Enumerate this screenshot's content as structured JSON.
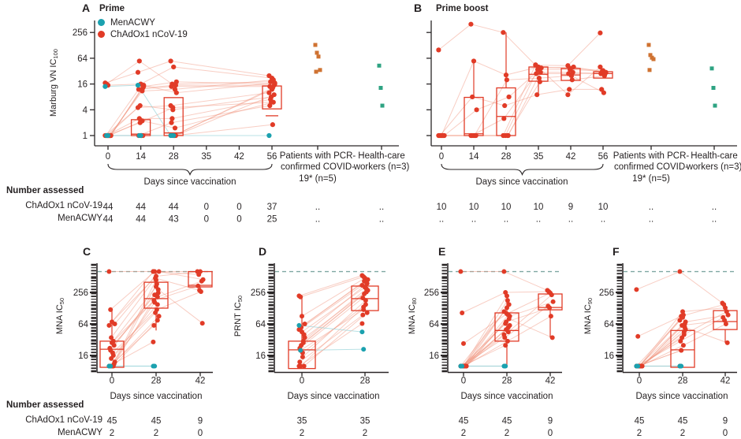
{
  "palette": {
    "red": "#e13b27",
    "teal": "#1ba1af",
    "orange": "#cf7231",
    "green": "#2ea382",
    "line_red": "#f0927b",
    "line_teal": "#93d2d8",
    "axis": "#2a2627",
    "text": "#231f20",
    "dashed": "#7fa8a3"
  },
  "legend": {
    "items": [
      {
        "label": "MenACWY",
        "color": "#1ba1af"
      },
      {
        "label": "ChAdOx1 nCoV-19",
        "color": "#e13b27"
      }
    ]
  },
  "shared": {
    "xlabel": "Days since vaccination",
    "number_assessed": "Number assessed",
    "row1": "ChAdOx1 nCoV-19",
    "row2": "MenACWY",
    "patients_header": "Patients with PCR-confirmed COVID-19* (n=5)",
    "hcw_header": "Health-care workers (n=3)"
  },
  "chart_data": [
    {
      "id": "A",
      "title": "Prime",
      "type": "box-scatter-line",
      "scale": "log",
      "ylabel": {
        "base": "Marburg VN IC",
        "sub": "100"
      },
      "yticks": [
        1,
        4,
        16,
        64,
        256
      ],
      "xticks": [
        0,
        14,
        28,
        35,
        42,
        56
      ],
      "series": {
        "ChAdOx1 nCoV-19": {
          "color": "red",
          "days": [
            [
              17,
              16,
              15,
              1,
              1,
              1,
              1,
              1,
              1,
              1,
              1,
              1,
              1,
              1,
              1,
              1,
              1,
              1
            ],
            [
              30,
              55,
              16,
              2.2,
              14,
              12,
              5,
              1,
              13,
              4.5,
              2.5,
              1,
              11,
              15,
              1,
              2,
              1,
              1
            ],
            [
              55,
              16,
              40,
              1.5,
              18,
              14,
              4,
              1,
              15,
              5,
              2.5,
              1,
              12,
              10,
              2,
              4.5,
              1,
              1
            ],
            [],
            [],
            [
              25,
              18,
              22,
              6,
              16,
              14,
              8,
              1.8,
              15,
              10,
              7,
              12,
              20,
              17,
              5,
              6,
              13,
              9
            ]
          ]
        },
        "MenACWY": {
          "color": "teal",
          "days": [
            [
              14,
              1,
              1
            ],
            [
              15,
              1,
              1
            ],
            [
              1,
              1,
              1
            ],
            [],
            [],
            [
              1
            ]
          ]
        }
      },
      "boxes": [
        {
          "d": 1,
          "q1": 1,
          "med": 1.08,
          "q3": 2.35
        },
        {
          "d": 2,
          "q1": 1,
          "med": 1.15,
          "q3": 7.7
        },
        {
          "d": 5,
          "q1": 4.2,
          "q3": 14.4,
          "cap": 2.9
        }
      ],
      "extra_columns": [
        {
          "key": "patients",
          "values": [
            131,
            86,
            70,
            34,
            31
          ]
        },
        {
          "key": "hcw",
          "values": [
            43,
            13,
            5
          ]
        }
      ],
      "assessed": [
        [
          "44",
          "44",
          "44",
          "0",
          "0",
          "37",
          "..",
          ".."
        ],
        [
          "44",
          "44",
          "43",
          "0",
          "0",
          "25",
          "..",
          ".."
        ]
      ]
    },
    {
      "id": "B",
      "title": "Prime boost",
      "type": "box-scatter-line",
      "scale": "log",
      "ylabel": {
        "base": "Marburg VN IC",
        "sub": "100"
      },
      "yticks": [
        1,
        4,
        16,
        64,
        256
      ],
      "xticks": [
        0,
        14,
        28,
        35,
        42,
        56
      ],
      "series": {
        "ChAdOx1 nCoV-19": {
          "color": "red",
          "days": [
            [
              100,
              1,
              1,
              1,
              1,
              1,
              1,
              1,
              1,
              1
            ],
            [
              400,
              8,
              55,
              1,
              4,
              1,
              1,
              1,
              1,
              1
            ],
            [
              256,
              5,
              26,
              1,
              8,
              2.5,
              1,
              20,
              1,
              1
            ],
            [
              44,
              9,
              40,
              18,
              38,
              28,
              35,
              22,
              30,
              45
            ],
            [
              43,
              12,
              37,
              20,
              40,
              28,
              35,
              25,
              30,
              9
            ],
            [
              250,
              12,
              33,
              25,
              30,
              28,
              32,
              10,
              28,
              40
            ]
          ]
        },
        "MenACWY": {
          "color": "teal",
          "days": [
            [],
            [],
            [],
            [],
            [],
            []
          ]
        }
      },
      "boxes": [
        {
          "d": 1,
          "q1": 1,
          "med": 1.1,
          "q3": 7.8,
          "hi": 54
        },
        {
          "d": 2,
          "q1": 1,
          "med": 2.8,
          "q3": 13,
          "hi": 256
        },
        {
          "d": 3,
          "q1": 18.6,
          "med": 27,
          "q3": 40,
          "hi": 44,
          "lo": 9
        },
        {
          "d": 4,
          "q1": 19.4,
          "med": 26,
          "q3": 37
        },
        {
          "d": 5,
          "q1": 22,
          "med": 28,
          "q3": 31
        }
      ],
      "extra_columns": [
        {
          "key": "patients",
          "values": [
            131,
            76,
            66,
            61,
            34
          ]
        },
        {
          "key": "hcw",
          "values": [
            37,
            13,
            5
          ]
        }
      ],
      "assessed": [
        [
          "10",
          "10",
          "10",
          "10",
          "9",
          "10",
          "..",
          ".."
        ],
        [
          "..",
          "..",
          "..",
          "..",
          "..",
          "..",
          "..",
          ".."
        ]
      ]
    },
    {
      "id": "C",
      "title": "",
      "type": "box-scatter-line",
      "scale": "log",
      "upper_limit": 640,
      "ylabel": {
        "base": "MNA IC",
        "sub": "50"
      },
      "yticks": [
        16,
        64,
        256
      ],
      "xticks": [
        0,
        28,
        42
      ],
      "series": {
        "ChAdOx1 nCoV-19": {
          "color": "red",
          "days": [
            [
              640,
              120,
              70,
              30,
              64,
              22,
              35,
              18,
              25,
              60,
              20,
              28,
              16,
              12,
              10,
              14,
              10,
              11,
              10,
              10,
              10,
              10
            ],
            [
              640,
              640,
              520,
              210,
              640,
              180,
              480,
              120,
              290,
              640,
              230,
              330,
              150,
              90,
              60,
              105,
              370,
              250,
              29,
              165,
              440,
              75
            ],
            [
              640,
              560,
              640,
              420,
              450,
              340,
              280,
              265,
              66
            ]
          ]
        },
        "MenACWY": {
          "color": "teal",
          "days": [
            [
              10,
              10
            ],
            [
              10,
              10
            ],
            []
          ]
        }
      },
      "boxes": [
        {
          "d": 0,
          "q1": 9.5,
          "med": 21,
          "q3": 30,
          "hi": 120
        },
        {
          "d": 1,
          "q1": 128,
          "med": 195,
          "q3": 400,
          "hi": 640,
          "lo": 48
        },
        {
          "d": 2,
          "q1": 326,
          "med": 350,
          "q3": 640,
          "lo": 265
        }
      ],
      "assessed": [
        [
          "45",
          "45",
          "9"
        ],
        [
          "2",
          "2",
          "0"
        ]
      ]
    },
    {
      "id": "D",
      "title": "",
      "type": "box-scatter-line",
      "scale": "log",
      "upper_limit": 640,
      "ylabel": {
        "base": "PRNT IC",
        "sub": "50"
      },
      "yticks": [
        16,
        64,
        256
      ],
      "xticks": [
        0,
        28
      ],
      "series": {
        "ChAdOx1 nCoV-19": {
          "color": "red",
          "days": [
            [
              220,
              210,
              90,
              30,
              64,
              22,
              55,
              18,
              40,
              50,
              20,
              45,
              28,
              35,
              12,
              25,
              15,
              10,
              10,
              10
            ],
            [
              540,
              510,
              480,
              300,
              450,
              200,
              420,
              150,
              380,
              350,
              120,
              320,
              260,
              280,
              95,
              240,
              180,
              105,
              65,
              135
            ]
          ]
        },
        "MenACWY": {
          "color": "teal",
          "days": [
            [
              60,
              20
            ],
            [
              45,
              21
            ]
          ]
        }
      },
      "boxes": [
        {
          "d": 0,
          "q1": 9,
          "med": 20.5,
          "q3": 30,
          "hi": 220
        },
        {
          "d": 1,
          "q1": 115,
          "med": 195,
          "q3": 338,
          "hi": 540
        }
      ],
      "assessed": [
        [
          "35",
          "35"
        ],
        [
          "2",
          "2"
        ]
      ]
    },
    {
      "id": "E",
      "title": "",
      "type": "box-scatter-line",
      "scale": "log",
      "upper_limit": 640,
      "ylabel": {
        "base": "MNA IC",
        "sub": "80"
      },
      "yticks": [
        16,
        64,
        256
      ],
      "xticks": [
        0,
        28,
        42
      ],
      "series": {
        "ChAdOx1 nCoV-19": {
          "color": "red",
          "days": [
            [
              640,
              104,
              27,
              10,
              10,
              10,
              10,
              10,
              10,
              10,
              10,
              10,
              10,
              10,
              10,
              10,
              10,
              10,
              10,
              10,
              10,
              10
            ],
            [
              640,
              256,
              100,
              45,
              90,
              35,
              70,
              30,
              80,
              110,
              25,
              130,
              55,
              60,
              10,
              50,
              180,
              150,
              40,
              65,
              220,
              95
            ],
            [
              280,
              265,
              250,
              230,
              170,
              140,
              130,
              90,
              35
            ]
          ]
        },
        "MenACWY": {
          "color": "teal",
          "days": [
            [
              10,
              10
            ],
            [
              10,
              10
            ],
            []
          ]
        }
      },
      "boxes": [
        {
          "d": 1,
          "q1": 30,
          "med": 48,
          "q3": 104,
          "hi": 256,
          "lo": 10
        },
        {
          "d": 2,
          "q1": 119,
          "med": 132,
          "q3": 239,
          "hi": 280,
          "lo": 35
        }
      ],
      "assessed": [
        [
          "45",
          "45",
          "9"
        ],
        [
          "2",
          "2",
          "0"
        ]
      ]
    },
    {
      "id": "F",
      "title": "",
      "type": "box-scatter-line",
      "scale": "log",
      "upper_limit": 640,
      "ylabel": {
        "base": "MNA IC",
        "sub": "90"
      },
      "yticks": [
        16,
        64,
        256
      ],
      "xticks": [
        0,
        28,
        42
      ],
      "series": {
        "ChAdOx1 nCoV-19": {
          "color": "red",
          "days": [
            [
              290,
              37,
              10,
              10,
              10,
              10,
              10,
              10,
              10,
              10,
              10,
              10,
              10,
              10,
              10,
              10,
              10,
              10,
              10,
              10
            ],
            [
              640,
              90,
              110,
              40,
              70,
              30,
              60,
              25,
              55,
              75,
              20,
              85,
              45,
              50,
              10,
              35,
              95,
              64,
              10,
              20
            ],
            [
              160,
              150,
              130,
              110,
              95,
              85,
              75,
              64,
              28
            ]
          ]
        },
        "MenACWY": {
          "color": "teal",
          "days": [
            [
              10,
              10
            ],
            [
              10,
              10
            ],
            []
          ]
        }
      },
      "boxes": [
        {
          "d": 1,
          "q1": 9.5,
          "med": 20.5,
          "q3": 48
        },
        {
          "d": 2,
          "q1": 50,
          "med": 71,
          "q3": 115,
          "hi": 160,
          "lo": 28
        }
      ],
      "assessed": [
        [
          "45",
          "45",
          "9"
        ],
        [
          "2",
          "2",
          "0"
        ]
      ]
    }
  ]
}
